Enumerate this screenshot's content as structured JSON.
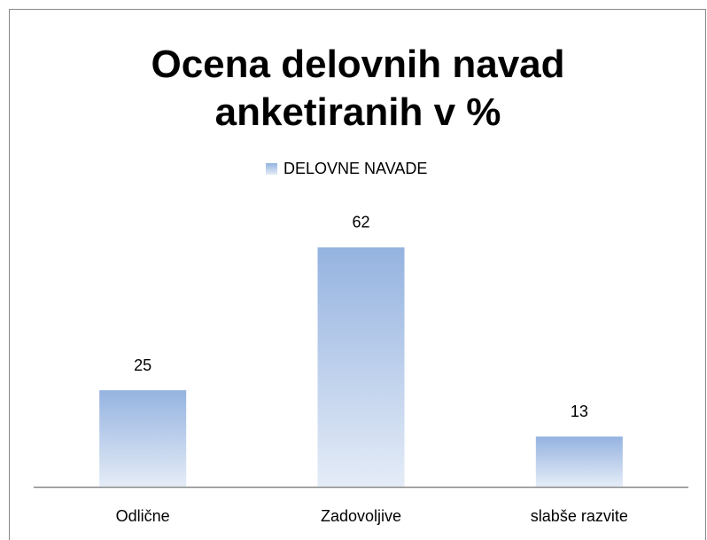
{
  "chart_data": {
    "type": "bar",
    "title": "Ocena delovnih navad anketiranih v %",
    "categories": [
      "Odlične",
      "Zadovoljive",
      "slabše razvite"
    ],
    "series": [
      {
        "name": "DELOVNE NAVADE",
        "color": "#95b3e0",
        "values": [
          25,
          62,
          13
        ]
      }
    ],
    "legend": "top"
  }
}
